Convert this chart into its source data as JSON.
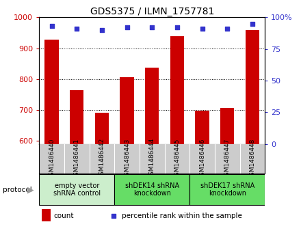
{
  "title": "GDS5375 / ILMN_1757781",
  "samples": [
    "GSM1486440",
    "GSM1486441",
    "GSM1486442",
    "GSM1486443",
    "GSM1486444",
    "GSM1486445",
    "GSM1486446",
    "GSM1486447",
    "GSM1486448"
  ],
  "counts": [
    928,
    763,
    690,
    807,
    838,
    938,
    697,
    706,
    958
  ],
  "percentiles": [
    93,
    91,
    90,
    92,
    92,
    92,
    91,
    91,
    95
  ],
  "ylim_left": [
    590,
    1000
  ],
  "ylim_right": [
    0,
    100
  ],
  "yticks_left": [
    600,
    700,
    800,
    900,
    1000
  ],
  "yticks_right": [
    0,
    25,
    50,
    75,
    100
  ],
  "bar_color": "#cc0000",
  "dot_color": "#3333cc",
  "groups": [
    {
      "label": "empty vector\nshRNA control",
      "start": 0,
      "end": 3,
      "color": "#cceecc"
    },
    {
      "label": "shDEK14 shRNA\nknockdown",
      "start": 3,
      "end": 6,
      "color": "#66dd66"
    },
    {
      "label": "shDEK17 shRNA\nknockdown",
      "start": 6,
      "end": 9,
      "color": "#66dd66"
    }
  ],
  "legend_count_label": "count",
  "legend_pct_label": "percentile rank within the sample",
  "protocol_label": "protocol",
  "background_color": "#ffffff",
  "sample_area_color": "#cccccc",
  "grid_color": "#000000",
  "grid_linestyle": "dotted",
  "grid_linewidth": 0.7,
  "bar_width": 0.55,
  "title_fontsize": 10,
  "tick_fontsize": 8,
  "label_fontsize": 8
}
